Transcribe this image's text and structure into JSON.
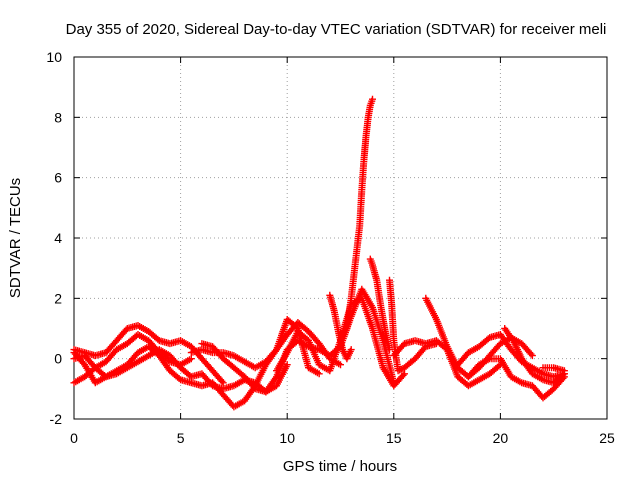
{
  "chart_data": {
    "type": "scatter",
    "title": "Day 355 of 2020, Sidereal Day-to-day VTEC variation (SDTVAR) for receiver meli",
    "xlabel": "GPS time / hours",
    "ylabel": "SDTVAR / TECUs",
    "xlim": [
      0,
      25
    ],
    "ylim": [
      -2,
      10
    ],
    "x_ticks": [
      0,
      5,
      10,
      15,
      20,
      25
    ],
    "y_ticks": [
      -2,
      0,
      2,
      4,
      6,
      8,
      10
    ],
    "x_tick_labels": [
      "0",
      "5",
      "10",
      "15",
      "20",
      "25"
    ],
    "y_tick_labels": [
      "-2",
      "0",
      "2",
      "4",
      "6",
      "8",
      "10"
    ],
    "grid": true,
    "marker": "+",
    "series": [
      {
        "name": "SDTVAR",
        "color": "#ff0000",
        "tracks": [
          [
            [
              0.0,
              -0.8
            ],
            [
              0.5,
              -0.6
            ],
            [
              1.0,
              -0.3
            ],
            [
              1.5,
              -0.1
            ],
            [
              2.0,
              0.3
            ],
            [
              2.5,
              0.5
            ],
            [
              3.0,
              0.8
            ],
            [
              3.5,
              0.6
            ],
            [
              4.0,
              0.2
            ],
            [
              4.5,
              -0.1
            ],
            [
              5.0,
              -0.2
            ],
            [
              5.5,
              0.0
            ]
          ],
          [
            [
              0.0,
              0.3
            ],
            [
              0.5,
              0.2
            ],
            [
              1.0,
              0.1
            ],
            [
              1.5,
              0.2
            ],
            [
              2.0,
              0.6
            ],
            [
              2.5,
              1.0
            ],
            [
              3.0,
              1.1
            ],
            [
              3.5,
              0.9
            ],
            [
              4.0,
              0.6
            ],
            [
              4.5,
              0.5
            ],
            [
              5.0,
              0.6
            ],
            [
              5.5,
              0.4
            ],
            [
              6.0,
              0.0
            ],
            [
              6.5,
              -0.4
            ],
            [
              7.0,
              -0.8
            ]
          ],
          [
            [
              0.0,
              0.0
            ],
            [
              0.5,
              0.1
            ],
            [
              1.0,
              -0.3
            ],
            [
              1.5,
              -0.6
            ],
            [
              2.0,
              -0.4
            ],
            [
              2.5,
              -0.2
            ],
            [
              3.0,
              0.2
            ],
            [
              3.5,
              0.4
            ],
            [
              4.0,
              0.1
            ],
            [
              4.5,
              -0.4
            ],
            [
              5.0,
              -0.7
            ],
            [
              5.5,
              -0.8
            ],
            [
              6.0,
              -0.9
            ],
            [
              6.5,
              -0.8
            ],
            [
              7.0,
              -1.2
            ],
            [
              7.5,
              -1.6
            ],
            [
              8.0,
              -1.4
            ],
            [
              8.5,
              -0.9
            ],
            [
              9.0,
              -0.2
            ],
            [
              9.5,
              0.3
            ],
            [
              10.0,
              1.3
            ],
            [
              10.5,
              1.0
            ],
            [
              11.0,
              -0.3
            ],
            [
              11.5,
              -0.5
            ]
          ],
          [
            [
              0.0,
              0.2
            ],
            [
              0.5,
              -0.2
            ],
            [
              1.0,
              -0.8
            ],
            [
              1.5,
              -0.6
            ],
            [
              2.0,
              -0.5
            ],
            [
              2.5,
              -0.3
            ],
            [
              3.0,
              -0.1
            ],
            [
              3.5,
              0.1
            ],
            [
              4.0,
              0.3
            ],
            [
              4.5,
              0.1
            ],
            [
              5.0,
              -0.3
            ],
            [
              5.5,
              -0.6
            ],
            [
              6.0,
              -0.5
            ],
            [
              6.5,
              -0.9
            ],
            [
              7.0,
              -1.0
            ],
            [
              7.5,
              -0.9
            ],
            [
              8.0,
              -0.7
            ],
            [
              8.5,
              -0.8
            ],
            [
              9.0,
              -1.1
            ],
            [
              9.5,
              -0.9
            ],
            [
              10.0,
              -0.2
            ]
          ],
          [
            [
              5.5,
              0.2
            ],
            [
              6.0,
              0.3
            ],
            [
              6.5,
              0.2
            ],
            [
              7.0,
              0.2
            ],
            [
              7.5,
              0.1
            ],
            [
              8.0,
              -0.1
            ],
            [
              8.5,
              -0.3
            ],
            [
              9.0,
              -0.1
            ],
            [
              9.5,
              0.3
            ],
            [
              10.0,
              0.8
            ],
            [
              10.5,
              1.2
            ],
            [
              11.0,
              0.9
            ],
            [
              11.5,
              0.5
            ],
            [
              12.0,
              0.0
            ],
            [
              12.5,
              -0.2
            ]
          ],
          [
            [
              6.0,
              0.5
            ],
            [
              6.5,
              0.4
            ],
            [
              7.0,
              0.0
            ],
            [
              7.5,
              -0.3
            ],
            [
              8.0,
              -0.6
            ],
            [
              8.5,
              -1.0
            ],
            [
              9.0,
              -1.1
            ],
            [
              9.5,
              -0.6
            ],
            [
              10.0,
              0.3
            ],
            [
              10.5,
              0.6
            ],
            [
              11.0,
              0.4
            ],
            [
              11.5,
              0.3
            ],
            [
              12.0,
              0.1
            ],
            [
              12.5,
              0.4
            ],
            [
              13.0,
              1.4
            ],
            [
              13.5,
              2.3
            ],
            [
              14.0,
              1.7
            ],
            [
              14.5,
              0.6
            ],
            [
              15.0,
              -0.8
            ]
          ],
          [
            [
              9.5,
              -0.4
            ],
            [
              10.0,
              0.2
            ],
            [
              10.5,
              0.9
            ],
            [
              11.0,
              0.6
            ],
            [
              11.5,
              -0.2
            ],
            [
              12.0,
              -0.4
            ],
            [
              12.5,
              0.6
            ],
            [
              13.0,
              1.8
            ],
            [
              13.5,
              2.0
            ],
            [
              14.0,
              1.0
            ],
            [
              14.5,
              -0.3
            ],
            [
              15.0,
              -0.9
            ],
            [
              15.5,
              -0.5
            ]
          ],
          [
            [
              12.0,
              2.1
            ],
            [
              12.2,
              1.6
            ],
            [
              12.4,
              0.9
            ],
            [
              12.6,
              0.3
            ],
            [
              12.8,
              0.0
            ],
            [
              13.0,
              0.3
            ]
          ],
          [
            [
              12.8,
              1.0
            ],
            [
              13.0,
              2.0
            ],
            [
              13.2,
              3.2
            ],
            [
              13.4,
              4.4
            ],
            [
              13.5,
              5.6
            ],
            [
              13.6,
              6.6
            ],
            [
              13.7,
              7.4
            ],
            [
              13.8,
              8.0
            ],
            [
              13.9,
              8.4
            ],
            [
              14.0,
              8.6
            ]
          ],
          [
            [
              13.9,
              3.3
            ],
            [
              14.0,
              3.1
            ],
            [
              14.2,
              2.6
            ],
            [
              14.4,
              1.7
            ],
            [
              14.6,
              0.9
            ],
            [
              14.8,
              0.3
            ]
          ],
          [
            [
              14.8,
              2.6
            ],
            [
              14.9,
              1.8
            ],
            [
              15.0,
              0.6
            ],
            [
              15.2,
              -0.4
            ],
            [
              15.5,
              -0.3
            ],
            [
              16.0,
              0.0
            ],
            [
              16.5,
              0.4
            ],
            [
              17.0,
              0.5
            ]
          ],
          [
            [
              15.0,
              0.1
            ],
            [
              15.5,
              0.5
            ],
            [
              16.0,
              0.6
            ],
            [
              16.5,
              0.5
            ],
            [
              17.0,
              0.6
            ],
            [
              17.5,
              0.3
            ],
            [
              18.0,
              -0.6
            ],
            [
              18.5,
              -0.9
            ],
            [
              19.0,
              -0.7
            ],
            [
              19.5,
              -0.5
            ],
            [
              20.0,
              -0.2
            ]
          ],
          [
            [
              16.5,
              2.0
            ],
            [
              17.0,
              1.3
            ],
            [
              17.5,
              0.4
            ],
            [
              18.0,
              -0.3
            ],
            [
              18.5,
              -0.6
            ],
            [
              19.0,
              -0.3
            ],
            [
              19.5,
              0.1
            ],
            [
              20.0,
              0.5
            ],
            [
              20.5,
              0.7
            ],
            [
              21.0,
              0.5
            ],
            [
              21.5,
              0.1
            ]
          ],
          [
            [
              18.0,
              -0.2
            ],
            [
              18.5,
              0.2
            ],
            [
              19.0,
              0.4
            ],
            [
              19.5,
              0.7
            ],
            [
              20.0,
              0.8
            ],
            [
              20.5,
              0.3
            ],
            [
              21.0,
              -0.1
            ],
            [
              21.5,
              -0.3
            ],
            [
              22.0,
              -0.5
            ],
            [
              22.5,
              -0.6
            ],
            [
              23.0,
              -0.5
            ]
          ],
          [
            [
              18.5,
              -0.6
            ],
            [
              19.0,
              -0.2
            ],
            [
              19.5,
              0.0
            ],
            [
              20.0,
              0.0
            ],
            [
              20.5,
              -0.6
            ],
            [
              21.0,
              -0.8
            ],
            [
              21.5,
              -0.9
            ],
            [
              22.0,
              -1.3
            ],
            [
              22.5,
              -1.0
            ],
            [
              23.0,
              -0.6
            ]
          ],
          [
            [
              20.2,
              1.0
            ],
            [
              20.6,
              0.6
            ],
            [
              21.0,
              0.0
            ],
            [
              21.5,
              -0.5
            ],
            [
              22.0,
              -0.7
            ],
            [
              22.5,
              -0.8
            ],
            [
              23.0,
              -0.5
            ]
          ],
          [
            [
              22.0,
              -0.3
            ],
            [
              22.5,
              -0.3
            ],
            [
              23.0,
              -0.4
            ]
          ]
        ]
      }
    ]
  }
}
